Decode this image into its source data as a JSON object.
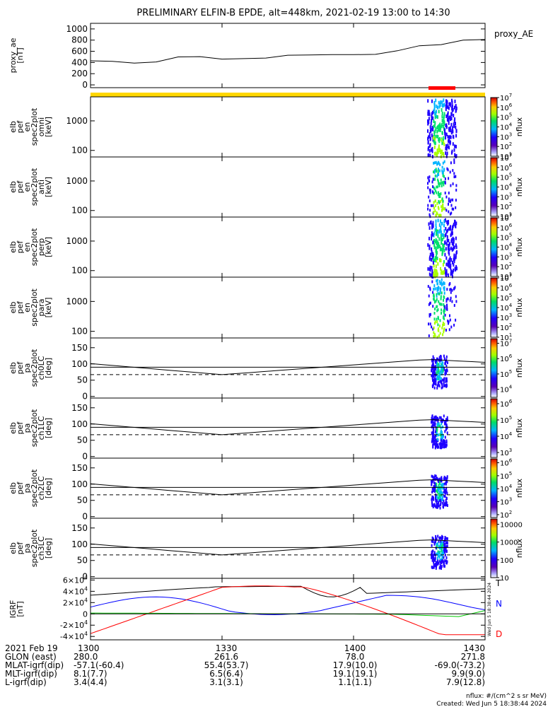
{
  "chart_data": {
    "type": "multi-panel spectrogram",
    "title": "PRELIMINARY ELFIN-B EPDE, alt=448km, 2021-02-19 13:00 to 14:30",
    "time_range": [
      "13:00",
      "14:30"
    ],
    "panels": [
      {
        "id": "proxy_ae",
        "type": "line",
        "ylabel": [
          "proxy_ae",
          "[nT]"
        ],
        "legend": "proxy_AE",
        "ylim": [
          -50,
          1100
        ],
        "yticks": [
          "1000",
          "800",
          "600",
          "400",
          "200",
          "0"
        ],
        "ytick_values": [
          1000,
          800,
          600,
          400,
          200,
          0
        ],
        "series": [
          {
            "x_min": [
              0,
              5,
              10,
              15,
              20,
              25,
              30,
              35,
              40,
              45,
              50,
              55,
              60,
              65,
              70,
              75,
              80,
              85,
              90
            ],
            "values": [
              430,
              420,
              390,
              410,
              500,
              505,
              460,
              470,
              480,
              530,
              535,
              540,
              540,
              545,
              610,
              700,
              720,
              800,
              810
            ]
          }
        ]
      },
      {
        "id": "en_omni",
        "type": "spectrogram",
        "ylabel": [
          "elb",
          "pef",
          "en",
          "spec2plot",
          "omni",
          "[keV]"
        ],
        "yscale": "log",
        "yticks": [
          "1000",
          "100"
        ],
        "ytick_values": [
          1000,
          100
        ],
        "ylim": [
          60,
          6500
        ],
        "colorbar": {
          "label": "nflux",
          "ticks": [
            "10^7",
            "10^6",
            "10^5",
            "10^4",
            "10^3",
            "10^2",
            "10^1"
          ],
          "range": [
            10,
            10000000
          ]
        }
      },
      {
        "id": "en_anti",
        "type": "spectrogram",
        "ylabel": [
          "elb",
          "pef",
          "en",
          "spec2plot",
          "anti",
          "[keV]"
        ],
        "yscale": "log",
        "yticks": [
          "1000",
          "100"
        ],
        "ytick_values": [
          1000,
          100
        ],
        "ylim": [
          60,
          6500
        ],
        "colorbar": {
          "label": "nflux",
          "ticks": [
            "10^7",
            "10^6",
            "10^5",
            "10^4",
            "10^3",
            "10^2",
            "10^1"
          ],
          "range": [
            10,
            10000000
          ]
        }
      },
      {
        "id": "en_perp",
        "type": "spectrogram",
        "ylabel": [
          "elb",
          "pef",
          "en",
          "spec2plot",
          "perp",
          "[keV]"
        ],
        "yscale": "log",
        "yticks": [
          "1000",
          "100"
        ],
        "ytick_values": [
          1000,
          100
        ],
        "ylim": [
          60,
          6500
        ],
        "colorbar": {
          "label": "nflux",
          "ticks": [
            "10^7",
            "10^6",
            "10^5",
            "10^4",
            "10^3",
            "10^2",
            "10^1"
          ],
          "range": [
            10,
            10000000
          ]
        }
      },
      {
        "id": "en_para",
        "type": "spectrogram",
        "ylabel": [
          "elb",
          "pef",
          "en",
          "spec2plot",
          "para",
          "[keV]"
        ],
        "yscale": "log",
        "yticks": [
          "1000",
          "100"
        ],
        "ytick_values": [
          1000,
          100
        ],
        "ylim": [
          60,
          6500
        ],
        "colorbar": {
          "label": "nflux",
          "ticks": [
            "10^7",
            "10^6",
            "10^5",
            "10^4",
            "10^3",
            "10^2",
            "10^1"
          ],
          "range": [
            10,
            10000000
          ]
        }
      },
      {
        "id": "pa_ch0",
        "type": "spectrogram",
        "ylabel": [
          "elb",
          "pef",
          "pa",
          "spec2plot",
          "ch0LC",
          "[deg]"
        ],
        "yticks": [
          "150",
          "100",
          "50",
          "0"
        ],
        "ytick_values": [
          150,
          100,
          50,
          0
        ],
        "ylim": [
          -5,
          180
        ],
        "colorbar": {
          "label": "nflux",
          "ticks": [
            "10^7",
            "10^6",
            "10^5",
            "10^4"
          ],
          "range": [
            3000,
            20000000
          ]
        }
      },
      {
        "id": "pa_ch1",
        "type": "spectrogram",
        "ylabel": [
          "elb",
          "pef",
          "pa",
          "spec2plot",
          "ch1LC",
          "[deg]"
        ],
        "yticks": [
          "150",
          "100",
          "50",
          "0"
        ],
        "ytick_values": [
          150,
          100,
          50,
          0
        ],
        "ylim": [
          -5,
          180
        ],
        "colorbar": {
          "label": "nflux",
          "ticks": [
            "10^6",
            "10^5",
            "10^4",
            "10^3"
          ],
          "range": [
            500,
            2000000
          ]
        }
      },
      {
        "id": "pa_ch2",
        "type": "spectrogram",
        "ylabel": [
          "elb",
          "pef",
          "pa",
          "spec2plot",
          "ch2LC",
          "[deg]"
        ],
        "yticks": [
          "150",
          "100",
          "50",
          "0"
        ],
        "ytick_values": [
          150,
          100,
          50,
          0
        ],
        "ylim": [
          -5,
          180
        ],
        "colorbar": {
          "label": "nflux",
          "ticks": [
            "10^6",
            "10^5",
            "10^4",
            "10^3",
            "10^2"
          ],
          "range": [
            60,
            2000000
          ]
        }
      },
      {
        "id": "pa_ch3",
        "type": "spectrogram",
        "ylabel": [
          "elb",
          "pef",
          "pa",
          "spec2plot",
          "ch3LC",
          "[deg]"
        ],
        "yticks": [
          "150",
          "100",
          "50",
          "0"
        ],
        "ytick_values": [
          150,
          100,
          50,
          0
        ],
        "ylim": [
          -5,
          180
        ],
        "colorbar": {
          "label": "nflux",
          "ticks": [
            "10000",
            "1000",
            "100",
            "10"
          ],
          "range": [
            10,
            20000
          ]
        }
      },
      {
        "id": "igrf",
        "type": "line",
        "ylabel": [
          "IGRF",
          "[nT]"
        ],
        "yticks": [
          "6x10^4",
          "4x10^4",
          "2x10^4",
          "0",
          "-2x10^4",
          "-4x10^4"
        ],
        "ytick_values": [
          60000,
          40000,
          20000,
          0,
          -20000,
          -40000
        ],
        "ylim": [
          -46000,
          63000
        ],
        "legend": [
          "T",
          "N",
          "D"
        ],
        "series": [
          {
            "name": "T",
            "color": "#000000"
          },
          {
            "name": "N",
            "color": "#0000ff"
          },
          {
            "name": "D",
            "color": "#ff0000"
          }
        ]
      }
    ],
    "x_ticks": [
      "1300",
      "1330",
      "1400",
      "1430"
    ],
    "x_tick_minutes": [
      0,
      30,
      60,
      90
    ],
    "ephemeris": {
      "rows": [
        {
          "label": "2021 Feb 19",
          "values": [
            "1300",
            "1330",
            "1400",
            "1430"
          ]
        },
        {
          "label": "GLON (east)",
          "values": [
            "280.0",
            "261.6",
            "78.0",
            "271.8"
          ]
        },
        {
          "label": "MLAT-igrf(dip)",
          "values": [
            "-57.1(-60.4)",
            "55.4(53.7)",
            "17.9(10.0)",
            "-69.0(-73.2)"
          ]
        },
        {
          "label": "MLT-igrf(dip)",
          "values": [
            "8.1(7.7)",
            "6.5(6.4)",
            "19.1(19.1)",
            "9.9(9.0)"
          ]
        },
        {
          "label": "L-igrf(dip)",
          "values": [
            "3.4(4.4)",
            "3.1(3.1)",
            "1.1(1.1)",
            "7.9(12.8)"
          ]
        }
      ]
    },
    "footer": {
      "units": "nflux: #/(cm^2 s sr MeV)",
      "created": "Created: Wed Jun  5 18:38:44 2024",
      "side_stamp": "Wed Jun  5 18:38:44 2024"
    }
  }
}
